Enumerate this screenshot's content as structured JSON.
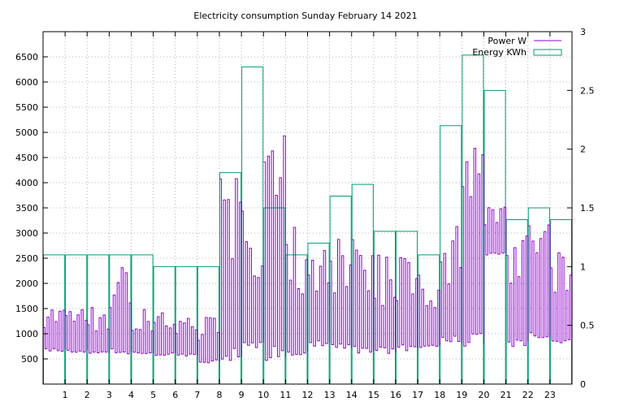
{
  "chart_data": {
    "type": "line",
    "title": "Electricity consumption Sunday February 14 2021",
    "legend_position": "top-right",
    "grid": true,
    "x": {
      "range": [
        0,
        24
      ],
      "ticks": [
        1,
        2,
        3,
        4,
        5,
        6,
        7,
        8,
        9,
        10,
        11,
        12,
        13,
        14,
        15,
        16,
        17,
        18,
        19,
        20,
        21,
        22,
        23
      ],
      "tick_labels": [
        "1",
        "2",
        "3",
        "4",
        "5",
        "6",
        "7",
        "8",
        "9",
        "10",
        "11",
        "12",
        "13",
        "14",
        "15",
        "16",
        "17",
        "18",
        "19",
        "20",
        "21",
        "22",
        "23"
      ]
    },
    "y_left": {
      "range": [
        0,
        7000
      ],
      "ticks": [
        500,
        1000,
        1500,
        2000,
        2500,
        3000,
        3500,
        4000,
        4500,
        5000,
        5500,
        6000,
        6500
      ],
      "tick_labels": [
        "500",
        "1000",
        "1500",
        "2000",
        "2500",
        "3000",
        "3500",
        "4000",
        "4500",
        "5000",
        "5500",
        "6000",
        "6500"
      ]
    },
    "y_right": {
      "range": [
        0,
        3
      ],
      "ticks": [
        0,
        0.5,
        1,
        1.5,
        2,
        2.5,
        3
      ],
      "tick_labels": [
        "0",
        "0.5",
        "1",
        "1.5",
        "2",
        "2.5",
        "3"
      ]
    },
    "series": [
      {
        "name": "Power W",
        "axis": "left",
        "color": "#9400d3",
        "hourly_envelope": [
          {
            "hour": 0,
            "low": 650,
            "high": 1900
          },
          {
            "hour": 1,
            "low": 620,
            "high": 1850
          },
          {
            "hour": 2,
            "low": 600,
            "high": 1850
          },
          {
            "hour": 3,
            "low": 580,
            "high": 3050
          },
          {
            "hour": 4,
            "low": 600,
            "high": 1800
          },
          {
            "hour": 5,
            "low": 560,
            "high": 1750
          },
          {
            "hour": 6,
            "low": 550,
            "high": 1750
          },
          {
            "hour": 7,
            "low": 420,
            "high": 1700
          },
          {
            "hour": 8,
            "low": 450,
            "high": 6000
          },
          {
            "hour": 9,
            "low": 700,
            "high": 4500
          },
          {
            "hour": 10,
            "low": 450,
            "high": 6700
          },
          {
            "hour": 11,
            "low": 500,
            "high": 4000
          },
          {
            "hour": 12,
            "low": 750,
            "high": 3600
          },
          {
            "hour": 13,
            "low": 650,
            "high": 3800
          },
          {
            "hour": 14,
            "low": 600,
            "high": 3700
          },
          {
            "hour": 15,
            "low": 600,
            "high": 3300
          },
          {
            "hour": 16,
            "low": 650,
            "high": 3400
          },
          {
            "hour": 17,
            "low": 700,
            "high": 2800
          },
          {
            "hour": 18,
            "low": 800,
            "high": 4100
          },
          {
            "hour": 19,
            "low": 750,
            "high": 6000
          },
          {
            "hour": 20,
            "low": 2550,
            "high": 4000
          },
          {
            "hour": 21,
            "low": 750,
            "high": 3800
          },
          {
            "hour": 22,
            "low": 900,
            "high": 4000
          },
          {
            "hour": 23,
            "low": 750,
            "high": 3800
          }
        ]
      },
      {
        "name": "Energy KWh",
        "axis": "right",
        "color": "#009e73",
        "style": "steps",
        "categories": [
          "0",
          "1",
          "2",
          "3",
          "4",
          "5",
          "6",
          "7",
          "8",
          "9",
          "10",
          "11",
          "12",
          "13",
          "14",
          "15",
          "16",
          "17",
          "18",
          "19",
          "20",
          "21",
          "22",
          "23"
        ],
        "values": [
          1.1,
          1.1,
          1.1,
          1.1,
          1.1,
          1.0,
          1.0,
          1.0,
          1.8,
          2.7,
          1.5,
          1.1,
          1.2,
          1.6,
          1.7,
          1.3,
          1.3,
          1.1,
          2.2,
          2.8,
          2.5,
          1.4,
          1.5,
          1.4
        ]
      }
    ]
  }
}
